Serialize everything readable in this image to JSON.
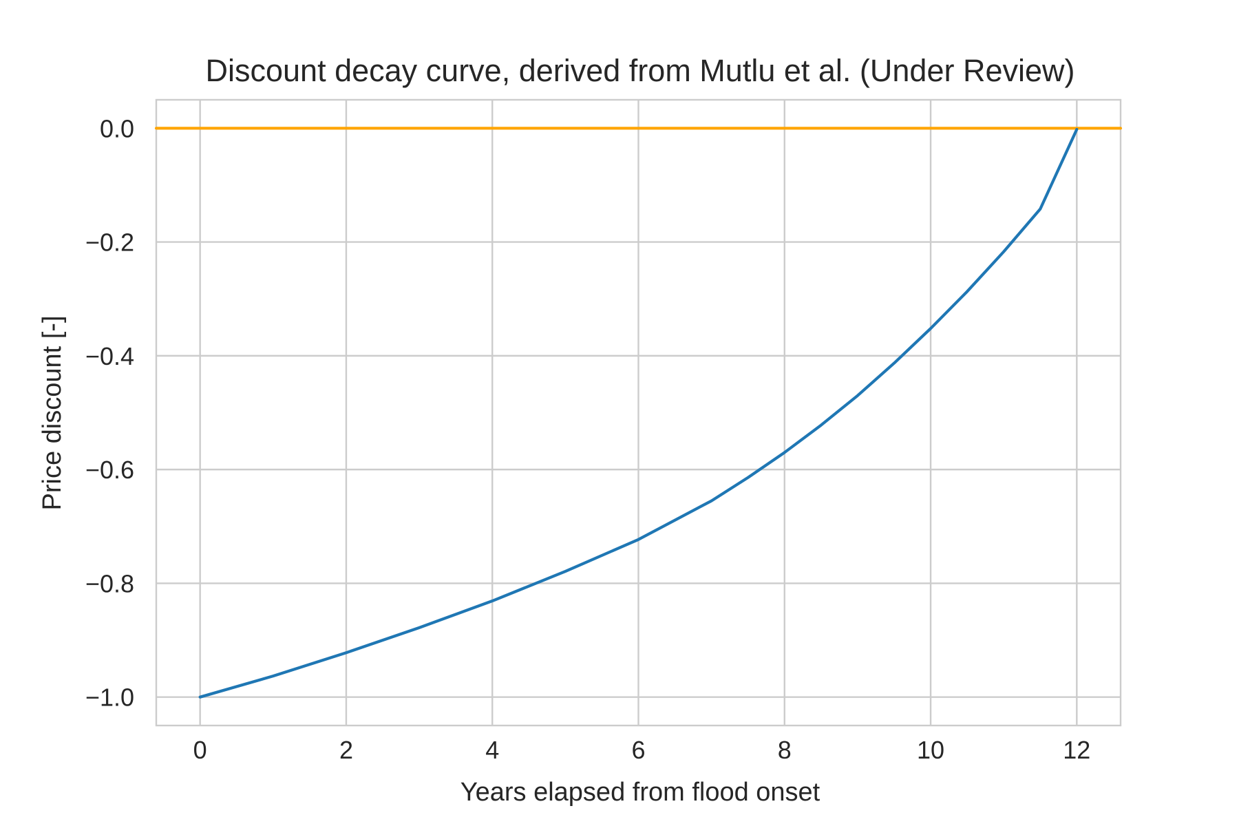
{
  "chart_data": {
    "type": "line",
    "title": "Discount decay curve, derived from Mutlu et al. (Under Review)",
    "xlabel": "Years elapsed from flood onset",
    "ylabel": "Price discount [-]",
    "xlim": [
      -0.6,
      12.6
    ],
    "ylim": [
      -1.05,
      0.05
    ],
    "xticks": [
      0,
      2,
      4,
      6,
      8,
      10,
      12
    ],
    "xtick_labels": [
      "0",
      "2",
      "4",
      "6",
      "8",
      "10",
      "12"
    ],
    "yticks": [
      0.0,
      -0.2,
      -0.4,
      -0.6,
      -0.8,
      -1.0
    ],
    "ytick_labels": [
      "0.0",
      "−0.2",
      "−0.4",
      "−0.6",
      "−0.8",
      "−1.0"
    ],
    "grid": true,
    "series": [
      {
        "color": "#1f77b4",
        "x": [
          0,
          1,
          2,
          3,
          4,
          5,
          6,
          7,
          7.5,
          8,
          8.5,
          9,
          9.5,
          10,
          10.5,
          11,
          11.5,
          12
        ],
        "y": [
          -1.0,
          -0.963,
          -0.922,
          -0.878,
          -0.831,
          -0.779,
          -0.723,
          -0.655,
          -0.614,
          -0.57,
          -0.522,
          -0.47,
          -0.413,
          -0.352,
          -0.287,
          -0.217,
          -0.142,
          -0.002
        ]
      },
      {
        "color": "#ffa500",
        "x": [
          -0.6,
          12.6
        ],
        "y": [
          0.0,
          0.0
        ]
      }
    ]
  }
}
